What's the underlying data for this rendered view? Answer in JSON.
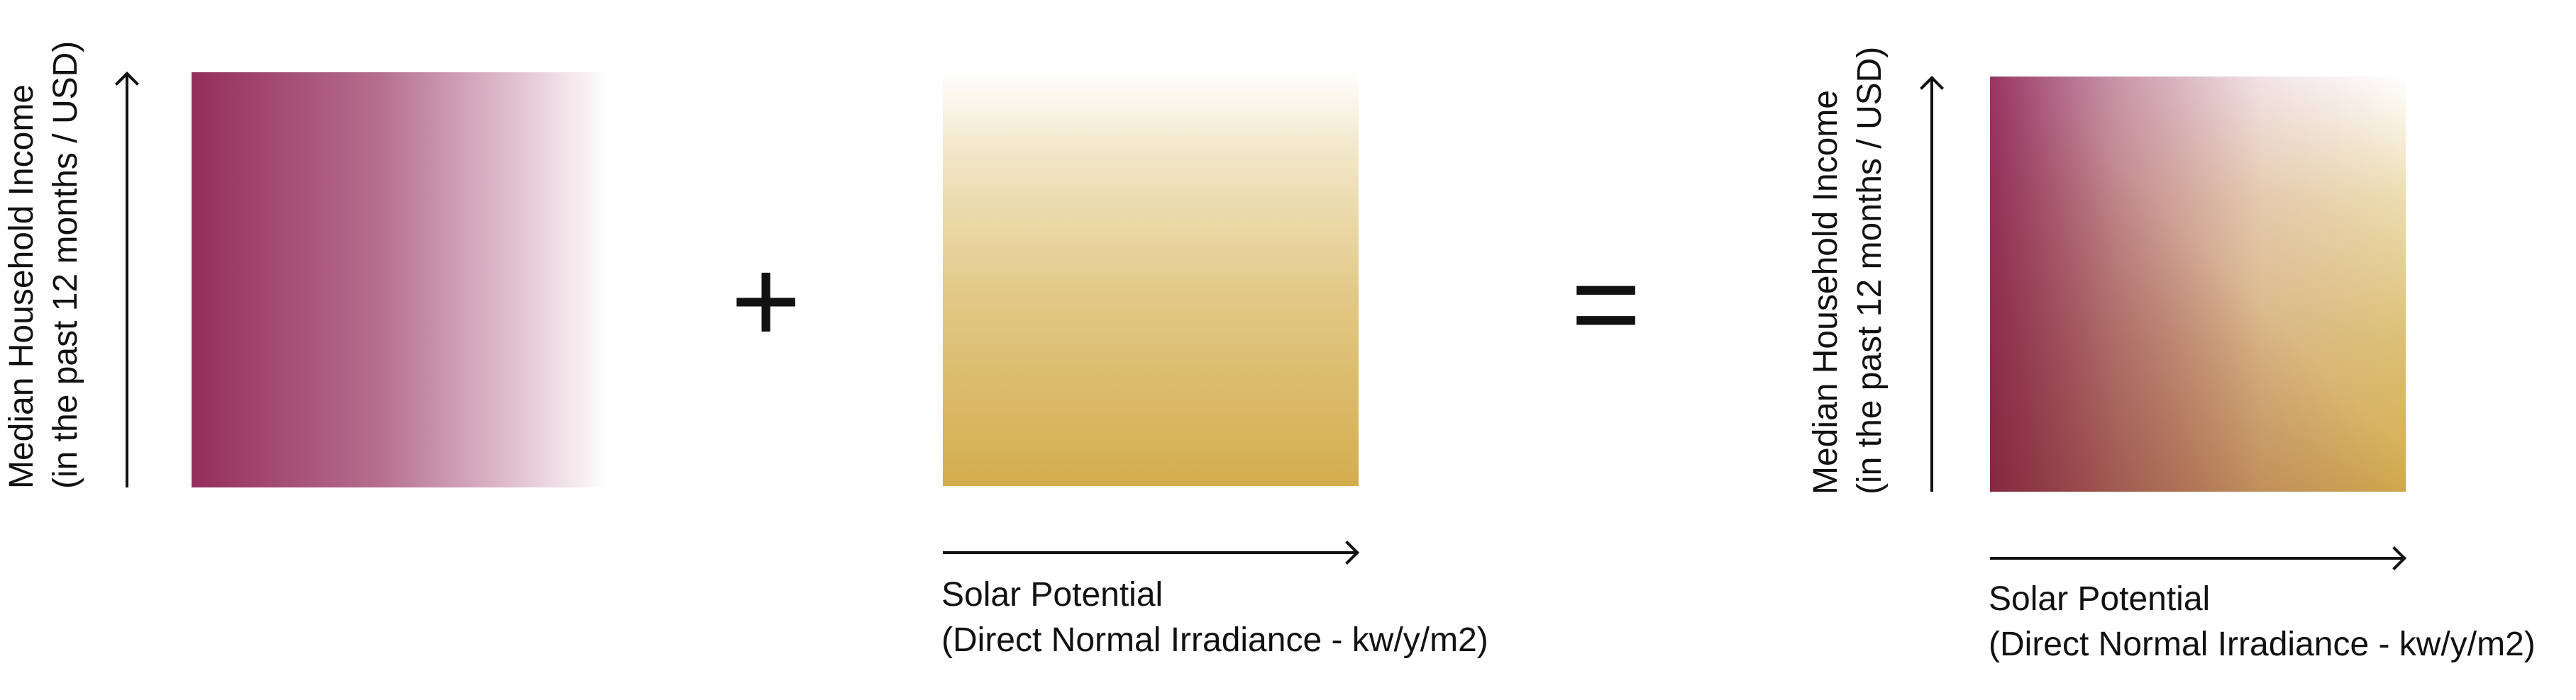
{
  "left_panel": {
    "y_axis_label_line1": "Median Household Income",
    "y_axis_label_line2": "(in the past 12 months / USD)",
    "gradient_colors": [
      "#942d5d",
      "#ffffff"
    ]
  },
  "operators": {
    "plus": "+",
    "equals": "="
  },
  "middle_panel": {
    "x_axis_label_line1": "Solar Potential",
    "x_axis_label_line2": "(Direct Normal Irradiance - kw/y/m2)",
    "gradient_colors": [
      "#d4ad4d",
      "#ffffff"
    ]
  },
  "right_panel": {
    "y_axis_label_line1": "Median Household Income",
    "y_axis_label_line2": "(in the past 12 months / USD)",
    "x_axis_label_line1": "Solar Potential",
    "x_axis_label_line2": "(Direct Normal Irradiance - kw/y/m2)",
    "corner_colors": {
      "top_left": "#942b5e",
      "top_right": "#ffffff",
      "bottom_left": "#7e2a2e",
      "bottom_right": "#d4ad4d"
    }
  }
}
